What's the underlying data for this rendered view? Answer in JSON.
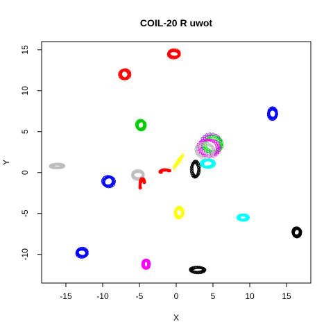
{
  "chart_data": {
    "type": "scatter",
    "title": "COIL-20 R uwot",
    "xlabel": "X",
    "ylabel": "Y",
    "xlim": [
      -18.3,
      18.3
    ],
    "ylim": [
      -13.5,
      16
    ],
    "xticks": [
      -15,
      -10,
      -5,
      0,
      5,
      10,
      15
    ],
    "yticks": [
      -10,
      -5,
      0,
      5,
      10,
      15
    ],
    "xtick_labels": [
      "-15",
      "-10",
      "-5",
      "0",
      "5",
      "10",
      "15"
    ],
    "ytick_labels": [
      "-10",
      "-5",
      "0",
      "5",
      "10",
      "15"
    ],
    "grid": false,
    "legend": "none",
    "clusters": [
      {
        "color": "#ff0000",
        "shape": "ring",
        "cx": -0.3,
        "cy": 14.5,
        "rx": 0.8,
        "ry": 0.5
      },
      {
        "color": "#ff0000",
        "shape": "ring",
        "cx": -7.0,
        "cy": 12.0,
        "rx": 0.7,
        "ry": 0.6
      },
      {
        "color": "#00cd00",
        "shape": "ring",
        "cx": -4.8,
        "cy": 5.8,
        "rx": 0.6,
        "ry": 0.6
      },
      {
        "color": "#0000ff",
        "shape": "ring",
        "cx": 13.1,
        "cy": 7.2,
        "rx": 0.6,
        "ry": 0.7
      },
      {
        "color": "#bebebe",
        "shape": "ring",
        "cx": -16.2,
        "cy": 0.8,
        "rx": 0.9,
        "ry": 0.25
      },
      {
        "color": "#0000ff",
        "shape": "ring",
        "cx": -9.2,
        "cy": -1.1,
        "rx": 0.8,
        "ry": 0.65
      },
      {
        "color": "#bebebe",
        "shape": "ring",
        "cx": -5.2,
        "cy": -0.3,
        "rx": 0.8,
        "ry": 0.55
      },
      {
        "color": "#ff0000",
        "shape": "arc",
        "cx": -4.6,
        "cy": -1.6,
        "rx": 0.35,
        "ry": 0.9
      },
      {
        "color": "#ff0000",
        "shape": "arc",
        "cx": -1.5,
        "cy": 0.1,
        "rx": 0.7,
        "ry": 0.25
      },
      {
        "color": "#ffff00",
        "shape": "line",
        "x1": -0.3,
        "y1": 0.6,
        "x2": 0.9,
        "y2": 2.1
      },
      {
        "color": "#000000",
        "shape": "ring",
        "cx": 2.6,
        "cy": 0.4,
        "rx": 0.55,
        "ry": 1.0
      },
      {
        "color": "#00ffff",
        "shape": "ring",
        "cx": 4.3,
        "cy": 1.1,
        "rx": 0.9,
        "ry": 0.5
      },
      {
        "color": "#a020f0",
        "shape": "ring",
        "cx": 4.8,
        "cy": 3.5,
        "rx": 1.5,
        "ry": 1.2
      },
      {
        "color": "#00ff00",
        "shape": "ring",
        "cx": 5.0,
        "cy": 3.4,
        "rx": 1.3,
        "ry": 1.0
      },
      {
        "color": "#ff00ff",
        "shape": "ring",
        "cx": 4.4,
        "cy": 3.0,
        "rx": 1.5,
        "ry": 1.1
      },
      {
        "color": "#bebebe",
        "shape": "ring",
        "cx": 3.9,
        "cy": 2.7,
        "rx": 1.3,
        "ry": 0.9
      },
      {
        "color": "#ffff00",
        "shape": "ring",
        "cx": 0.4,
        "cy": -4.9,
        "rx": 0.55,
        "ry": 0.65
      },
      {
        "color": "#00ffff",
        "shape": "ring",
        "cx": 9.1,
        "cy": -5.5,
        "rx": 0.7,
        "ry": 0.35
      },
      {
        "color": "#000000",
        "shape": "ring",
        "cx": 16.4,
        "cy": -7.3,
        "rx": 0.55,
        "ry": 0.55
      },
      {
        "color": "#0000ff",
        "shape": "ring",
        "cx": -12.8,
        "cy": -9.8,
        "rx": 0.75,
        "ry": 0.55
      },
      {
        "color": "#ff00ff",
        "shape": "ring",
        "cx": -4.1,
        "cy": -11.2,
        "rx": 0.45,
        "ry": 0.55
      },
      {
        "color": "#000000",
        "shape": "ring",
        "cx": 2.9,
        "cy": -11.9,
        "rx": 1.0,
        "ry": 0.35
      }
    ]
  }
}
